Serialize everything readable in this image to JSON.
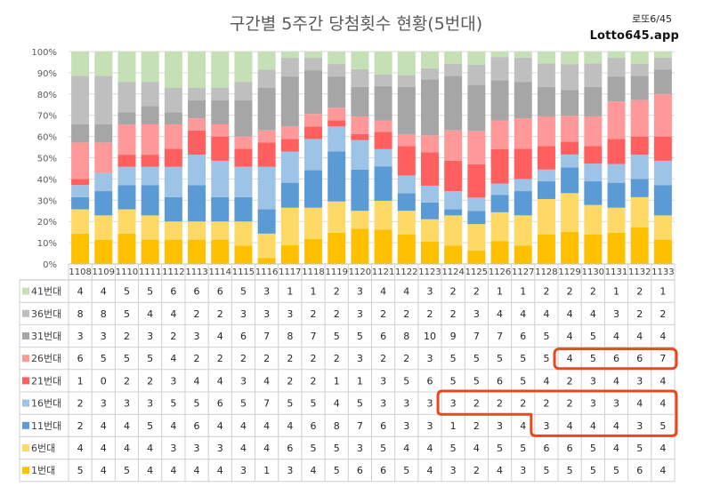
{
  "title": "구간별 5주간 당첨횟수 현황(5번대)",
  "brand": {
    "line1": "로또6/45",
    "line2": "Lotto645.app"
  },
  "colors": {
    "highlight_box": "#e8481d"
  },
  "chart_data": {
    "type": "bar",
    "stacked": true,
    "normalized_percent": true,
    "yticks": [
      "0%",
      "10%",
      "20%",
      "30%",
      "40%",
      "50%",
      "60%",
      "70%",
      "80%",
      "90%",
      "100%"
    ],
    "ylim": [
      0,
      100
    ],
    "grid": true,
    "categories": [
      "1108",
      "1109",
      "1110",
      "1111",
      "1112",
      "1113",
      "1114",
      "1115",
      "1116",
      "1117",
      "1118",
      "1119",
      "1120",
      "1121",
      "1122",
      "1123",
      "1124",
      "1125",
      "1126",
      "1127",
      "1128",
      "1129",
      "1130",
      "1131",
      "1132",
      "1133"
    ],
    "series": [
      {
        "name": "1번대",
        "color": "#ffc000",
        "values": [
          5,
          4,
          5,
          4,
          4,
          4,
          4,
          3,
          1,
          3,
          4,
          5,
          6,
          6,
          5,
          4,
          3,
          2,
          4,
          3,
          5,
          5,
          5,
          5,
          6,
          4
        ]
      },
      {
        "name": "6번대",
        "color": "#ffd966",
        "values": [
          4,
          4,
          4,
          4,
          3,
          3,
          3,
          4,
          4,
          6,
          5,
          5,
          3,
          5,
          4,
          4,
          5,
          4,
          5,
          5,
          6,
          6,
          5,
          4,
          5,
          4
        ]
      },
      {
        "name": "11번대",
        "color": "#5b9bd5",
        "values": [
          2,
          4,
          4,
          5,
          4,
          6,
          4,
          4,
          4,
          4,
          6,
          8,
          7,
          6,
          3,
          3,
          1,
          2,
          3,
          4,
          3,
          4,
          4,
          4,
          3,
          5
        ]
      },
      {
        "name": "16번대",
        "color": "#9dc3e6",
        "values": [
          2,
          3,
          3,
          3,
          5,
          5,
          6,
          5,
          7,
          5,
          5,
          4,
          5,
          3,
          3,
          3,
          3,
          2,
          2,
          2,
          2,
          2,
          3,
          3,
          4,
          4
        ]
      },
      {
        "name": "21번대",
        "color": "#ff5f5f",
        "values": [
          1,
          0,
          2,
          2,
          3,
          4,
          4,
          3,
          4,
          2,
          2,
          1,
          1,
          3,
          5,
          6,
          5,
          5,
          6,
          5,
          4,
          2,
          3,
          4,
          3,
          4
        ]
      },
      {
        "name": "26번대",
        "color": "#ff9999",
        "values": [
          6,
          5,
          5,
          5,
          4,
          2,
          2,
          2,
          2,
          2,
          2,
          2,
          3,
          2,
          2,
          3,
          5,
          5,
          5,
          5,
          5,
          4,
          5,
          6,
          6,
          7
        ]
      },
      {
        "name": "31번대",
        "color": "#a6a6a6",
        "values": [
          3,
          3,
          2,
          3,
          2,
          3,
          4,
          6,
          7,
          8,
          7,
          5,
          5,
          6,
          8,
          10,
          9,
          7,
          7,
          6,
          5,
          4,
          5,
          4,
          4,
          4
        ]
      },
      {
        "name": "36번대",
        "color": "#bfbfbf",
        "values": [
          8,
          8,
          5,
          4,
          4,
          2,
          2,
          3,
          3,
          3,
          2,
          2,
          3,
          2,
          2,
          2,
          2,
          3,
          4,
          4,
          4,
          4,
          4,
          3,
          2,
          2
        ]
      },
      {
        "name": "41번대",
        "color": "#c5e0b4",
        "values": [
          4,
          4,
          5,
          5,
          6,
          6,
          6,
          5,
          3,
          1,
          1,
          2,
          3,
          4,
          4,
          3,
          2,
          2,
          1,
          1,
          2,
          2,
          2,
          1,
          2,
          1
        ]
      }
    ],
    "highlights": [
      {
        "series": "26번대",
        "categories": [
          "1129",
          "1133"
        ]
      },
      {
        "series": "16번대",
        "categories": [
          "1124",
          "1133"
        ]
      },
      {
        "series": "11번대",
        "categories": [
          "1128",
          "1133"
        ]
      }
    ]
  }
}
